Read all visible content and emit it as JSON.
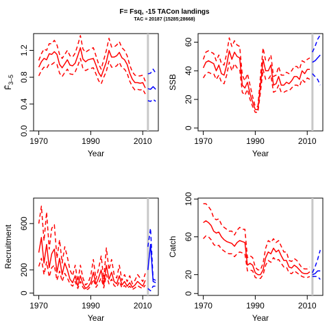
{
  "figure": {
    "title": "F= Fsq, -15 TACon landings",
    "subtitle": "TAC = 20187 (15285;28668)",
    "vline_year": 2012,
    "colors": {
      "historical": "#ff0000",
      "projection": "#0000ff",
      "vline": "#c8c8c8",
      "axis": "#000000"
    }
  },
  "chart_data": [
    {
      "type": "line",
      "id": "fbar",
      "ylabel": "F̄",
      "ylabel_sub": "3–5",
      "xlabel": "Year",
      "xlim": [
        1968,
        2016
      ],
      "ylim": [
        0,
        1.45
      ],
      "xticks": [
        1970,
        1990,
        2010
      ],
      "yticks": [
        0.0,
        0.4,
        0.8,
        1.2
      ],
      "yticklabels": [
        "0.0",
        "0.4",
        "0.8",
        "1.2"
      ],
      "x": [
        1970,
        1971,
        1972,
        1973,
        1974,
        1975,
        1976,
        1977,
        1978,
        1979,
        1980,
        1981,
        1982,
        1983,
        1984,
        1985,
        1986,
        1987,
        1988,
        1989,
        1990,
        1991,
        1992,
        1993,
        1994,
        1995,
        1996,
        1997,
        1998,
        1999,
        2000,
        2001,
        2002,
        2003,
        2004,
        2005,
        2006,
        2007,
        2008,
        2009,
        2010,
        2011
      ],
      "series": [
        {
          "role": "central",
          "color": "#ff0000",
          "dash": "solid",
          "values": [
            0.95,
            1.03,
            1.08,
            1.06,
            1.15,
            1.14,
            1.18,
            1.14,
            0.99,
            0.94,
            1.0,
            1.06,
            0.98,
            0.97,
            1.01,
            1.12,
            1.24,
            1.07,
            1.03,
            1.06,
            1.07,
            1.08,
            0.98,
            0.87,
            0.81,
            0.92,
            1.03,
            1.2,
            1.1,
            1.1,
            1.12,
            1.17,
            1.09,
            1.06,
            0.99,
            0.86,
            0.77,
            0.72,
            0.72,
            0.71,
            0.72,
            0.64
          ]
        },
        {
          "role": "upper",
          "color": "#ff0000",
          "dash": "dashed",
          "values": [
            1.05,
            1.15,
            1.22,
            1.2,
            1.3,
            1.3,
            1.35,
            1.28,
            1.14,
            1.08,
            1.14,
            1.2,
            1.12,
            1.1,
            1.16,
            1.28,
            1.42,
            1.22,
            1.17,
            1.2,
            1.22,
            1.24,
            1.12,
            1.0,
            0.92,
            1.06,
            1.2,
            1.38,
            1.25,
            1.25,
            1.28,
            1.33,
            1.24,
            1.2,
            1.12,
            0.98,
            0.88,
            0.83,
            0.82,
            0.82,
            0.83,
            0.74
          ]
        },
        {
          "role": "lower",
          "color": "#ff0000",
          "dash": "dashed",
          "values": [
            0.82,
            0.9,
            0.95,
            0.93,
            1.0,
            0.99,
            1.02,
            0.99,
            0.86,
            0.81,
            0.87,
            0.92,
            0.85,
            0.84,
            0.88,
            0.97,
            1.08,
            0.93,
            0.9,
            0.92,
            0.93,
            0.94,
            0.85,
            0.75,
            0.7,
            0.8,
            0.89,
            1.04,
            0.95,
            0.95,
            0.97,
            1.02,
            0.94,
            0.92,
            0.86,
            0.74,
            0.66,
            0.61,
            0.62,
            0.61,
            0.62,
            0.55
          ]
        }
      ],
      "projection": {
        "x": [
          2012,
          2013,
          2014,
          2015
        ],
        "series": [
          {
            "role": "central",
            "color": "#0000ff",
            "dash": "solid",
            "values": [
              0.63,
              0.62,
              0.66,
              0.62
            ]
          },
          {
            "role": "upper",
            "color": "#0000ff",
            "dash": "dashed",
            "values": [
              0.85,
              0.86,
              0.92,
              0.86
            ]
          },
          {
            "role": "lower",
            "color": "#0000ff",
            "dash": "dashed",
            "values": [
              0.45,
              0.44,
              0.47,
              0.44
            ]
          }
        ]
      }
    },
    {
      "type": "line",
      "id": "ssb",
      "ylabel": "SSB",
      "ylabel_sub": "",
      "xlabel": "Year",
      "xlim": [
        1968,
        2016
      ],
      "ylim": [
        -2,
        66
      ],
      "xticks": [
        1970,
        1990,
        2010
      ],
      "yticks": [
        0,
        20,
        40,
        60
      ],
      "yticklabels": [
        "0",
        "20",
        "40",
        "60"
      ],
      "x": [
        1970,
        1971,
        1972,
        1973,
        1974,
        1975,
        1976,
        1977,
        1978,
        1979,
        1980,
        1981,
        1982,
        1983,
        1984,
        1985,
        1986,
        1987,
        1988,
        1989,
        1990,
        1991,
        1992,
        1993,
        1994,
        1995,
        1996,
        1997,
        1998,
        1999,
        2000,
        2001,
        2002,
        2003,
        2004,
        2005,
        2006,
        2007,
        2008,
        2009,
        2010,
        2011
      ],
      "series": [
        {
          "role": "central",
          "color": "#ff0000",
          "dash": "solid",
          "values": [
            42,
            46,
            47,
            46,
            45,
            40,
            44,
            38,
            37,
            44,
            54,
            48,
            53,
            50,
            49,
            30,
            28,
            32,
            24,
            18,
            13,
            13,
            30,
            48,
            40,
            40,
            44,
            30,
            31,
            36,
            30,
            30,
            32,
            31,
            33,
            36,
            36,
            34,
            40,
            38,
            41,
            41
          ]
        },
        {
          "role": "upper",
          "color": "#ff0000",
          "dash": "dashed",
          "values": [
            48,
            53,
            54,
            53,
            52,
            47,
            51,
            45,
            44,
            52,
            63,
            57,
            61,
            58,
            57,
            37,
            33,
            38,
            30,
            22,
            15,
            15,
            36,
            56,
            47,
            47,
            51,
            36,
            37,
            43,
            37,
            37,
            39,
            38,
            40,
            43,
            43,
            41,
            47,
            46,
            48,
            49
          ]
        },
        {
          "role": "lower",
          "color": "#ff0000",
          "dash": "dashed",
          "values": [
            35,
            38,
            39,
            38,
            38,
            34,
            37,
            32,
            31,
            37,
            46,
            40,
            45,
            42,
            41,
            25,
            23,
            27,
            20,
            15,
            11,
            11,
            25,
            41,
            34,
            34,
            37,
            25,
            26,
            30,
            25,
            25,
            26,
            26,
            28,
            30,
            30,
            29,
            34,
            32,
            35,
            34
          ]
        }
      ],
      "projection": {
        "x": [
          2012,
          2013,
          2014,
          2015
        ],
        "series": [
          {
            "role": "central",
            "color": "#0000ff",
            "dash": "solid",
            "values": [
              46,
              47,
              49,
              51
            ]
          },
          {
            "role": "upper",
            "color": "#0000ff",
            "dash": "dashed",
            "values": [
              53,
              57,
              62,
              65
            ]
          },
          {
            "role": "lower",
            "color": "#0000ff",
            "dash": "dashed",
            "values": [
              38,
              36,
              34,
              30
            ]
          }
        ]
      }
    },
    {
      "type": "line",
      "id": "recruitment",
      "ylabel": "Recruitment",
      "ylabel_sub": "",
      "xlabel": "Year",
      "xlim": [
        1968,
        2016
      ],
      "ylim": [
        -20,
        820
      ],
      "xticks": [
        1970,
        1990,
        2010
      ],
      "yticks": [
        0,
        200,
        600
      ],
      "yticklabels": [
        "0",
        "200",
        "600"
      ],
      "x": [
        1970,
        1971,
        1972,
        1973,
        1974,
        1975,
        1976,
        1977,
        1978,
        1979,
        1980,
        1981,
        1982,
        1983,
        1984,
        1985,
        1986,
        1987,
        1988,
        1989,
        1990,
        1991,
        1992,
        1993,
        1994,
        1995,
        1996,
        1997,
        1998,
        1999,
        2000,
        2001,
        2002,
        2003,
        2004,
        2005,
        2006,
        2007,
        2008,
        2009,
        2010,
        2011
      ],
      "series": [
        {
          "role": "central",
          "color": "#ff0000",
          "dash": "solid",
          "values": [
            350,
            480,
            260,
            420,
            220,
            340,
            380,
            180,
            300,
            160,
            260,
            200,
            120,
            90,
            150,
            60,
            150,
            80,
            40,
            55,
            90,
            180,
            75,
            130,
            200,
            70,
            240,
            120,
            180,
            100,
            80,
            150,
            70,
            100,
            60,
            90,
            50,
            70,
            100,
            80,
            60,
            110
          ]
        },
        {
          "role": "upper",
          "color": "#ff0000",
          "dash": "dashed",
          "values": [
            600,
            750,
            450,
            700,
            380,
            560,
            590,
            300,
            460,
            260,
            400,
            310,
            200,
            150,
            240,
            100,
            240,
            130,
            70,
            90,
            150,
            290,
            120,
            210,
            320,
            120,
            390,
            200,
            290,
            160,
            130,
            240,
            110,
            160,
            100,
            150,
            80,
            110,
            160,
            130,
            100,
            170
          ]
        },
        {
          "role": "lower",
          "color": "#ff0000",
          "dash": "dashed",
          "values": [
            230,
            300,
            160,
            270,
            140,
            220,
            240,
            110,
            190,
            100,
            170,
            130,
            80,
            60,
            100,
            40,
            100,
            50,
            25,
            35,
            60,
            120,
            50,
            85,
            130,
            45,
            160,
            80,
            120,
            65,
            50,
            100,
            45,
            65,
            40,
            60,
            30,
            45,
            65,
            50,
            40,
            70
          ]
        }
      ],
      "projection": {
        "x": [
          2012,
          2013,
          2014,
          2015
        ],
        "series": [
          {
            "role": "central",
            "color": "#0000ff",
            "dash": "solid",
            "values": [
              200,
              420,
              100,
              90
            ]
          },
          {
            "role": "upper",
            "color": "#0000ff",
            "dash": "dashed",
            "values": [
              400,
              560,
              120,
              110
            ]
          },
          {
            "role": "lower",
            "color": "#0000ff",
            "dash": "dashed",
            "values": [
              40,
              20,
              60,
              60
            ]
          }
        ]
      }
    },
    {
      "type": "line",
      "id": "catch",
      "ylabel": "Catch",
      "ylabel_sub": "",
      "xlabel": "Year",
      "xlim": [
        1968,
        2016
      ],
      "ylim": [
        -2,
        101
      ],
      "xticks": [
        1970,
        1990,
        2010
      ],
      "yticks": [
        0,
        20,
        60,
        100
      ],
      "yticklabels": [
        "0",
        "20",
        "60",
        "100"
      ],
      "x": [
        1970,
        1971,
        1972,
        1973,
        1974,
        1975,
        1976,
        1977,
        1978,
        1979,
        1980,
        1981,
        1982,
        1983,
        1984,
        1985,
        1986,
        1987,
        1988,
        1989,
        1990,
        1991,
        1992,
        1993,
        1994,
        1995,
        1996,
        1997,
        1998,
        1999,
        2000,
        2001,
        2002,
        2003,
        2004,
        2005,
        2006,
        2007,
        2008,
        2009,
        2010,
        2011
      ],
      "series": [
        {
          "role": "central",
          "color": "#ff0000",
          "dash": "solid",
          "values": [
            75,
            77,
            75,
            72,
            66,
            64,
            65,
            60,
            57,
            55,
            54,
            53,
            50,
            54,
            56,
            55,
            54,
            30,
            32,
            30,
            22,
            20,
            20,
            25,
            38,
            44,
            42,
            48,
            44,
            46,
            40,
            35,
            35,
            28,
            27,
            30,
            28,
            25,
            22,
            21,
            21,
            23
          ]
        },
        {
          "role": "upper",
          "color": "#ff0000",
          "dash": "dashed",
          "values": [
            95,
            95,
            92,
            88,
            80,
            78,
            79,
            73,
            70,
            68,
            66,
            66,
            62,
            67,
            70,
            68,
            68,
            38,
            40,
            38,
            28,
            25,
            25,
            32,
            48,
            56,
            54,
            58,
            54,
            56,
            50,
            44,
            44,
            35,
            34,
            37,
            35,
            31,
            27,
            26,
            26,
            28
          ]
        },
        {
          "role": "lower",
          "color": "#ff0000",
          "dash": "dashed",
          "values": [
            58,
            61,
            60,
            57,
            52,
            50,
            51,
            47,
            45,
            43,
            42,
            42,
            39,
            42,
            44,
            43,
            42,
            24,
            25,
            24,
            17,
            16,
            16,
            20,
            30,
            35,
            33,
            38,
            35,
            36,
            32,
            28,
            28,
            22,
            21,
            24,
            22,
            20,
            18,
            17,
            17,
            18
          ]
        }
      ],
      "projection": {
        "x": [
          2012,
          2013,
          2014,
          2015
        ],
        "series": [
          {
            "role": "central",
            "color": "#0000ff",
            "dash": "solid",
            "values": [
              20,
              21,
              24,
              24
            ]
          },
          {
            "role": "upper",
            "color": "#0000ff",
            "dash": "dashed",
            "values": [
              22,
              28,
              36,
              46
            ]
          },
          {
            "role": "lower",
            "color": "#0000ff",
            "dash": "dashed",
            "values": [
              18,
              18,
              18,
              15
            ]
          }
        ]
      }
    }
  ]
}
